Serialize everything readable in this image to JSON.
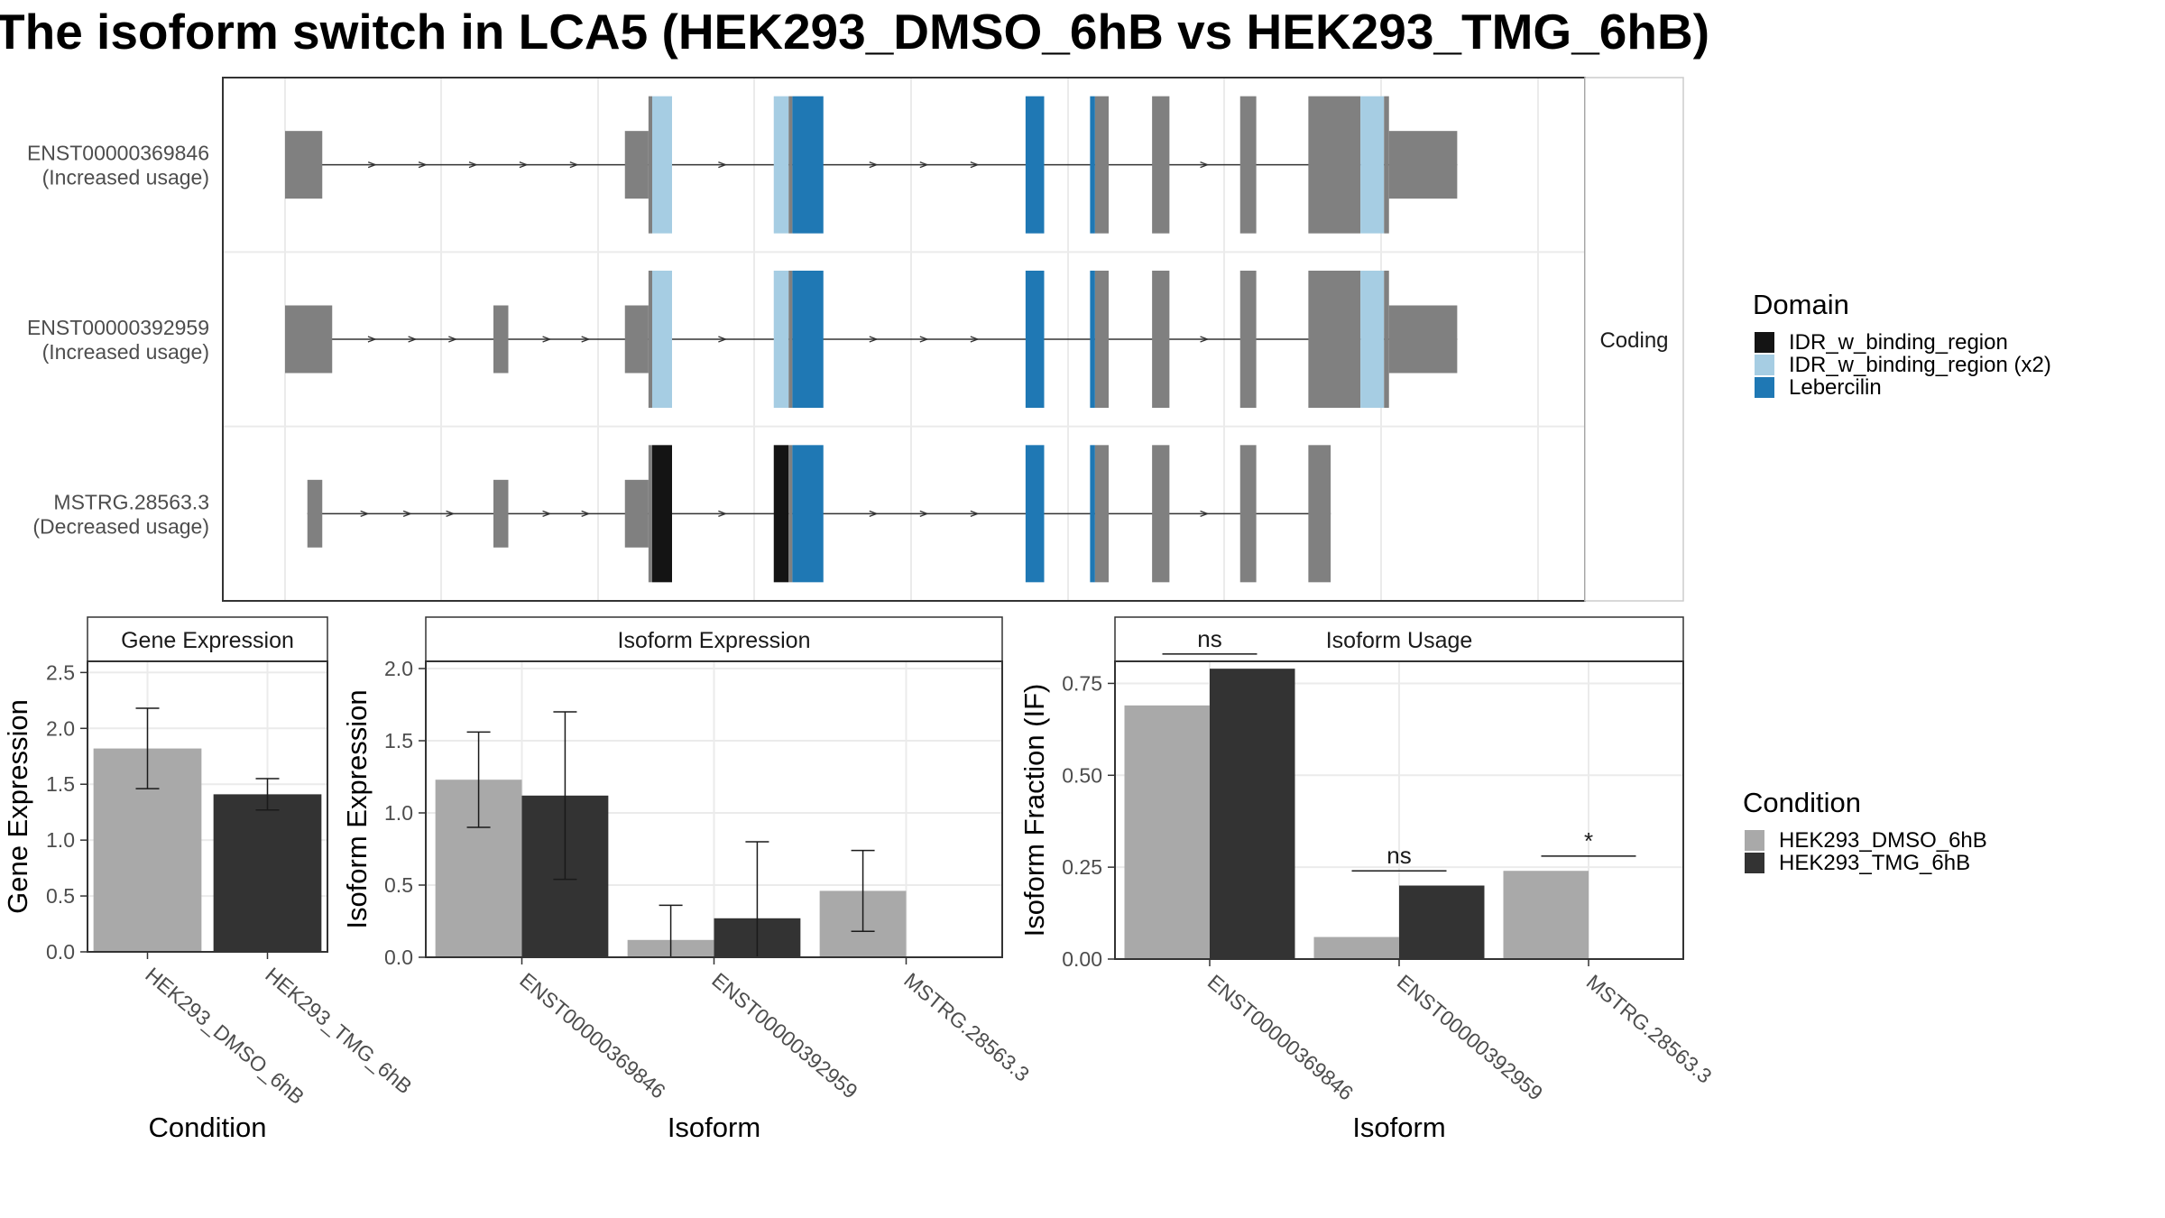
{
  "title": "The isoform switch in LCA5 (HEK293_DMSO_6hB vs HEK293_TMG_6hB)",
  "colors": {
    "exon": "#808080",
    "idr_binding": "#141414",
    "idr_binding_x2": "#a6cde3",
    "lebercilin": "#1f78b4",
    "dmso": "#a9a9a9",
    "tmg": "#333333",
    "panel_border": "#333333",
    "grid": "#ebebeb",
    "strip_fill": "#ffffff"
  },
  "chart_data": [
    {
      "type": "gene-structure",
      "strip_label": "Coding",
      "transcripts": [
        {
          "id": "ENST00000369846",
          "label": "(Increased usage)",
          "segments": [
            [
              0.0,
              0.03,
              "exon",
              "utr"
            ],
            [
              0.274,
              0.293,
              "exon",
              "utr"
            ],
            [
              0.293,
              0.296,
              "exon",
              "cds"
            ],
            [
              0.296,
              0.312,
              "idr_binding_x2",
              "cds"
            ],
            [
              0.394,
              0.406,
              "idr_binding_x2",
              "cds"
            ],
            [
              0.406,
              0.409,
              "exon",
              "cds"
            ],
            [
              0.409,
              0.434,
              "lebercilin",
              "cds"
            ],
            [
              0.597,
              0.612,
              "lebercilin",
              "cds"
            ],
            [
              0.649,
              0.653,
              "lebercilin",
              "cds"
            ],
            [
              0.653,
              0.664,
              "exon",
              "cds"
            ],
            [
              0.699,
              0.713,
              "exon",
              "cds"
            ],
            [
              0.77,
              0.783,
              "exon",
              "cds"
            ],
            [
              0.825,
              0.867,
              "exon",
              "cds"
            ],
            [
              0.867,
              0.886,
              "idr_binding_x2",
              "cds"
            ],
            [
              0.886,
              0.89,
              "exon",
              "cds"
            ],
            [
              0.89,
              0.945,
              "exon",
              "utr"
            ]
          ]
        },
        {
          "id": "ENST00000392959",
          "label": "(Increased usage)",
          "segments": [
            [
              0.0,
              0.038,
              "exon",
              "utr"
            ],
            [
              0.168,
              0.18,
              "exon",
              "utr"
            ],
            [
              0.274,
              0.293,
              "exon",
              "utr"
            ],
            [
              0.293,
              0.296,
              "exon",
              "cds"
            ],
            [
              0.296,
              0.312,
              "idr_binding_x2",
              "cds"
            ],
            [
              0.394,
              0.406,
              "idr_binding_x2",
              "cds"
            ],
            [
              0.406,
              0.409,
              "exon",
              "cds"
            ],
            [
              0.409,
              0.434,
              "lebercilin",
              "cds"
            ],
            [
              0.597,
              0.612,
              "lebercilin",
              "cds"
            ],
            [
              0.649,
              0.653,
              "lebercilin",
              "cds"
            ],
            [
              0.653,
              0.664,
              "exon",
              "cds"
            ],
            [
              0.699,
              0.713,
              "exon",
              "cds"
            ],
            [
              0.77,
              0.783,
              "exon",
              "cds"
            ],
            [
              0.825,
              0.867,
              "exon",
              "cds"
            ],
            [
              0.867,
              0.886,
              "idr_binding_x2",
              "cds"
            ],
            [
              0.886,
              0.89,
              "exon",
              "cds"
            ],
            [
              0.89,
              0.945,
              "exon",
              "utr"
            ]
          ]
        },
        {
          "id": "MSTRG.28563.3",
          "label": "(Decreased usage)",
          "segments": [
            [
              0.018,
              0.03,
              "exon",
              "utr"
            ],
            [
              0.168,
              0.18,
              "exon",
              "utr"
            ],
            [
              0.274,
              0.293,
              "exon",
              "utr"
            ],
            [
              0.293,
              0.296,
              "exon",
              "cds"
            ],
            [
              0.296,
              0.312,
              "idr_binding",
              "cds"
            ],
            [
              0.394,
              0.406,
              "idr_binding",
              "cds"
            ],
            [
              0.406,
              0.409,
              "exon",
              "cds"
            ],
            [
              0.409,
              0.434,
              "lebercilin",
              "cds"
            ],
            [
              0.597,
              0.612,
              "lebercilin",
              "cds"
            ],
            [
              0.649,
              0.653,
              "lebercilin",
              "cds"
            ],
            [
              0.653,
              0.664,
              "exon",
              "cds"
            ],
            [
              0.699,
              0.713,
              "exon",
              "cds"
            ],
            [
              0.77,
              0.783,
              "exon",
              "cds"
            ],
            [
              0.825,
              0.843,
              "exon",
              "cds"
            ]
          ]
        }
      ],
      "legend": {
        "title": "Domain",
        "entries": [
          {
            "label": "IDR_w_binding_region",
            "color_key": "idr_binding"
          },
          {
            "label": "IDR_w_binding_region (x2)",
            "color_key": "idr_binding_x2"
          },
          {
            "label": "Lebercilin",
            "color_key": "lebercilin"
          }
        ]
      }
    },
    {
      "type": "bar",
      "strip_label": "Gene Expression",
      "xlabel": "Condition",
      "ylabel": "Gene Expression",
      "ylim": [
        0,
        2.6
      ],
      "yticks": [
        "0.0",
        "0.5",
        "1.0",
        "1.5",
        "2.0",
        "2.5"
      ],
      "categories": [
        "HEK293_DMSO_6hB",
        "HEK293_TMG_6hB"
      ],
      "bars": [
        {
          "category": "HEK293_DMSO_6hB",
          "condition": "dmso",
          "value": 1.82,
          "err_low": 1.46,
          "err_high": 2.18
        },
        {
          "category": "HEK293_TMG_6hB",
          "condition": "tmg",
          "value": 1.41,
          "err_low": 1.27,
          "err_high": 1.55
        }
      ]
    },
    {
      "type": "bar",
      "strip_label": "Isoform Expression",
      "xlabel": "Isoform",
      "ylabel": "Isoform Expression",
      "ylim": [
        0,
        2.05
      ],
      "yticks": [
        "0.0",
        "0.5",
        "1.0",
        "1.5",
        "2.0"
      ],
      "categories": [
        "ENST00000369846",
        "ENST00000392959",
        "MSTRG.28563.3"
      ],
      "series": [
        {
          "condition": "dmso",
          "values": [
            1.23,
            0.12,
            0.46
          ],
          "err_low": [
            0.9,
            0.0,
            0.18
          ],
          "err_high": [
            1.56,
            0.36,
            0.74
          ]
        },
        {
          "condition": "tmg",
          "values": [
            1.12,
            0.27,
            0.0
          ],
          "err_low": [
            0.54,
            0.0,
            0.0
          ],
          "err_high": [
            1.7,
            0.8,
            0.0
          ]
        }
      ]
    },
    {
      "type": "bar",
      "strip_label": "Isoform Usage",
      "xlabel": "Isoform",
      "ylabel": "Isoform Fraction (IF)",
      "ylim": [
        0,
        0.81
      ],
      "yticks": [
        "0.00",
        "0.25",
        "0.50",
        "0.75"
      ],
      "categories": [
        "ENST00000369846",
        "ENST00000392959",
        "MSTRG.28563.3"
      ],
      "series": [
        {
          "condition": "dmso",
          "values": [
            0.69,
            0.06,
            0.24
          ]
        },
        {
          "condition": "tmg",
          "values": [
            0.79,
            0.2,
            0.0
          ]
        }
      ],
      "significance": [
        {
          "category": "ENST00000369846",
          "label": "ns",
          "level": 0.83
        },
        {
          "category": "ENST00000392959",
          "label": "ns",
          "level": 0.24
        },
        {
          "category": "MSTRG.28563.3",
          "label": "*",
          "level": 0.28
        }
      ]
    }
  ],
  "condition_legend": {
    "title": "Condition",
    "entries": [
      {
        "label": "HEK293_DMSO_6hB",
        "color_key": "dmso"
      },
      {
        "label": "HEK293_TMG_6hB",
        "color_key": "tmg"
      }
    ]
  }
}
